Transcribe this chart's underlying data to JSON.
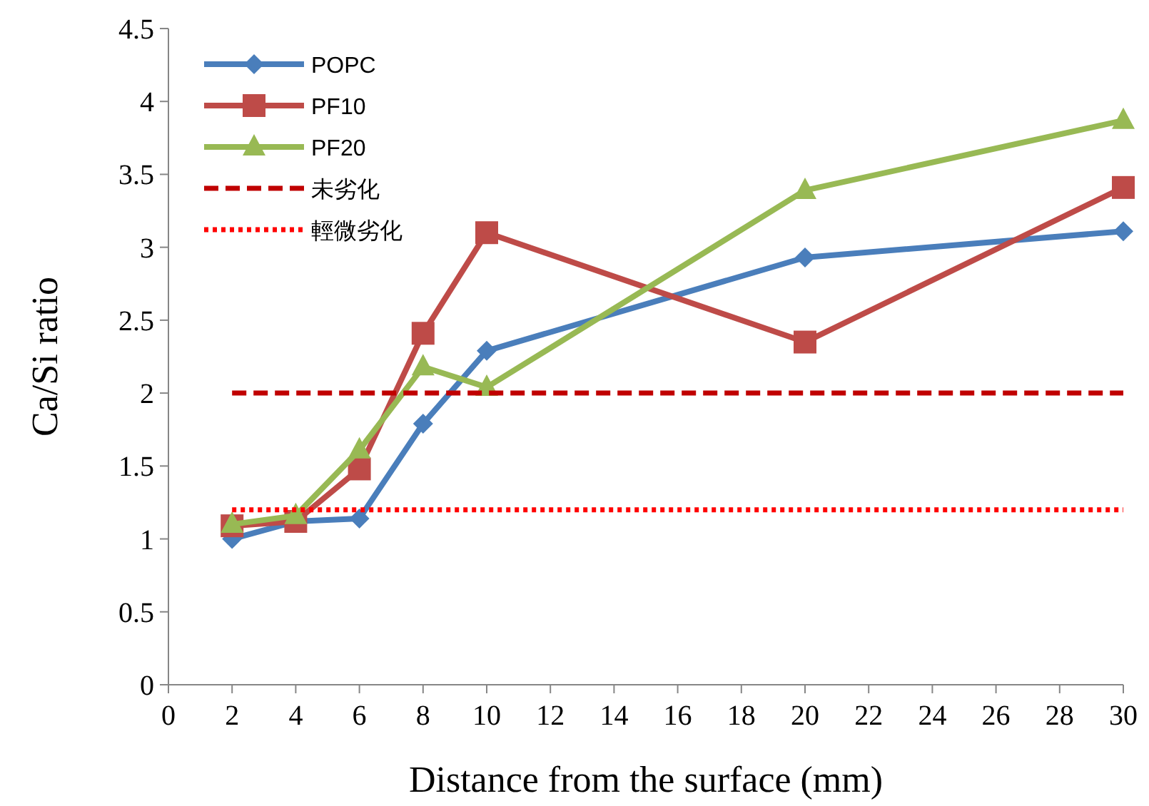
{
  "chart_data": {
    "type": "line",
    "xlabel": "Distance from the surface (mm)",
    "ylabel": "Ca/Si ratio",
    "xlim": [
      0,
      30
    ],
    "xticks": [
      0,
      2,
      4,
      6,
      8,
      10,
      12,
      14,
      16,
      18,
      20,
      22,
      24,
      26,
      28,
      30
    ],
    "ylim": [
      0,
      4.5
    ],
    "yticks": [
      0,
      0.5,
      1,
      1.5,
      2,
      2.5,
      3,
      3.5,
      4,
      4.5
    ],
    "grid": false,
    "legend": "top left",
    "series": [
      {
        "name": "POPC",
        "color": "#4a7ebb",
        "marker": "diamond",
        "line_style": "solid",
        "x": [
          2,
          4,
          6,
          8,
          10,
          20,
          30
        ],
        "values": [
          1.0,
          1.12,
          1.14,
          1.79,
          2.29,
          2.93,
          3.11
        ]
      },
      {
        "name": "PF10",
        "color": "#be4b48",
        "marker": "square",
        "line_style": "solid",
        "x": [
          2,
          4,
          6,
          8,
          10,
          20,
          30
        ],
        "values": [
          1.09,
          1.12,
          1.48,
          2.41,
          3.1,
          2.35,
          3.41
        ]
      },
      {
        "name": "PF20",
        "color": "#98b954",
        "marker": "triangle",
        "line_style": "solid",
        "x": [
          2,
          4,
          6,
          8,
          10,
          20,
          30
        ],
        "values": [
          1.1,
          1.16,
          1.61,
          2.18,
          2.04,
          3.39,
          3.87
        ]
      },
      {
        "name": "未劣化",
        "color": "#c00000",
        "marker": "none",
        "line_style": "dashed",
        "x": [
          2,
          30
        ],
        "values": [
          2.0,
          2.0
        ]
      },
      {
        "name": "輕微劣化",
        "color": "#ff0000",
        "marker": "none",
        "line_style": "dotted",
        "x": [
          2,
          30
        ],
        "values": [
          1.2,
          1.2
        ]
      }
    ]
  }
}
